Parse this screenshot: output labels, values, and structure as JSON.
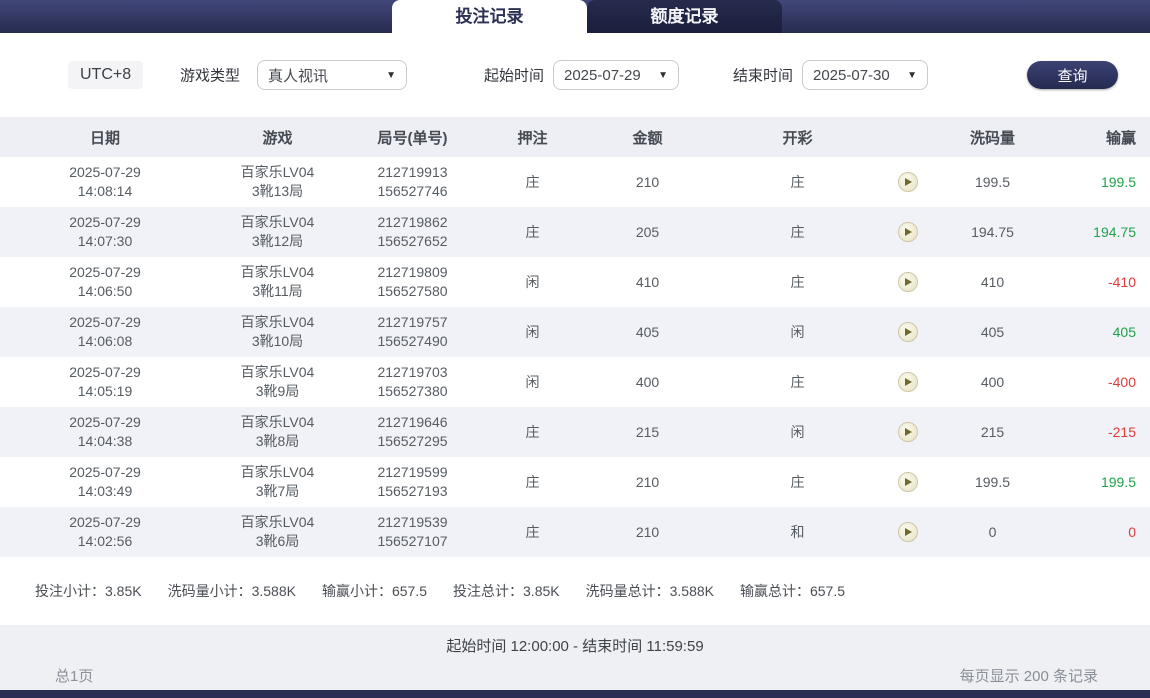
{
  "tabs": [
    {
      "label": "投注记录",
      "active": true
    },
    {
      "label": "额度记录",
      "active": false
    }
  ],
  "filters": {
    "timezone": "UTC+8",
    "game_type_label": "游戏类型",
    "game_type_value": "真人视讯",
    "start_label": "起始时间",
    "start_value": "2025-07-29",
    "end_label": "结束时间",
    "end_value": "2025-07-30",
    "query_button": "查询",
    "dropdown_caret": "▼"
  },
  "table": {
    "headers": [
      "日期",
      "游戏",
      "局号(单号)",
      "押注",
      "金额",
      "开彩",
      "",
      "洗码量",
      "输赢"
    ],
    "rows": [
      {
        "date": "2025-07-29",
        "time": "14:08:14",
        "game": "百家乐LV04",
        "round": "3靴13局",
        "no1": "212719913",
        "no2": "156527746",
        "bet": "庄",
        "amount": "210",
        "result": "庄",
        "rolling": "199.5",
        "winloss": "199.5",
        "winloss_class": "pos"
      },
      {
        "date": "2025-07-29",
        "time": "14:07:30",
        "game": "百家乐LV04",
        "round": "3靴12局",
        "no1": "212719862",
        "no2": "156527652",
        "bet": "庄",
        "amount": "205",
        "result": "庄",
        "rolling": "194.75",
        "winloss": "194.75",
        "winloss_class": "pos"
      },
      {
        "date": "2025-07-29",
        "time": "14:06:50",
        "game": "百家乐LV04",
        "round": "3靴11局",
        "no1": "212719809",
        "no2": "156527580",
        "bet": "闲",
        "amount": "410",
        "result": "庄",
        "rolling": "410",
        "winloss": "-410",
        "winloss_class": "neg"
      },
      {
        "date": "2025-07-29",
        "time": "14:06:08",
        "game": "百家乐LV04",
        "round": "3靴10局",
        "no1": "212719757",
        "no2": "156527490",
        "bet": "闲",
        "amount": "405",
        "result": "闲",
        "rolling": "405",
        "winloss": "405",
        "winloss_class": "pos"
      },
      {
        "date": "2025-07-29",
        "time": "14:05:19",
        "game": "百家乐LV04",
        "round": "3靴9局",
        "no1": "212719703",
        "no2": "156527380",
        "bet": "闲",
        "amount": "400",
        "result": "庄",
        "rolling": "400",
        "winloss": "-400",
        "winloss_class": "neg"
      },
      {
        "date": "2025-07-29",
        "time": "14:04:38",
        "game": "百家乐LV04",
        "round": "3靴8局",
        "no1": "212719646",
        "no2": "156527295",
        "bet": "庄",
        "amount": "215",
        "result": "闲",
        "rolling": "215",
        "winloss": "-215",
        "winloss_class": "neg"
      },
      {
        "date": "2025-07-29",
        "time": "14:03:49",
        "game": "百家乐LV04",
        "round": "3靴7局",
        "no1": "212719599",
        "no2": "156527193",
        "bet": "庄",
        "amount": "210",
        "result": "庄",
        "rolling": "199.5",
        "winloss": "199.5",
        "winloss_class": "pos"
      },
      {
        "date": "2025-07-29",
        "time": "14:02:56",
        "game": "百家乐LV04",
        "round": "3靴6局",
        "no1": "212719539",
        "no2": "156527107",
        "bet": "庄",
        "amount": "210",
        "result": "和",
        "rolling": "0",
        "winloss": "0",
        "winloss_class": "neg"
      }
    ]
  },
  "summary": {
    "items": [
      {
        "label": "投注小计：",
        "value": "3.85K"
      },
      {
        "label": "洗码量小计：",
        "value": "3.588K"
      },
      {
        "label": "输赢小计：",
        "value": "657.5"
      },
      {
        "label": "投注总计：",
        "value": "3.85K"
      },
      {
        "label": "洗码量总计：",
        "value": "3.588K"
      },
      {
        "label": "输赢总计：",
        "value": "657.5"
      }
    ]
  },
  "footer": {
    "period": "起始时间 12:00:00 - 结束时间 11:59:59",
    "total_pages": "总1页",
    "per_page": "每页显示 200 条记录"
  },
  "colors": {
    "navy": "#2b3055",
    "topbar_gradient_top": "#42477a",
    "topbar_gradient_bottom": "#272b4f",
    "win_green": "#1fa24b",
    "loss_red": "#e03c3c",
    "row_alt": "#f1f2f7",
    "header_bg": "#edeff4"
  }
}
